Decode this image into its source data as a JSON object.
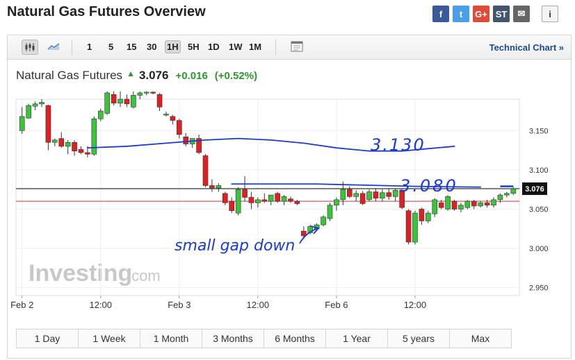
{
  "page": {
    "title": "Natural Gas Futures Overview"
  },
  "share": [
    {
      "name": "facebook",
      "glyph": "f",
      "color": "#3b5998"
    },
    {
      "name": "twitter",
      "glyph": "t",
      "color": "#4aa0e8"
    },
    {
      "name": "google-plus",
      "glyph": "G+",
      "color": "#dd4b39"
    },
    {
      "name": "stocktwits",
      "glyph": "ST",
      "color": "#40576e"
    },
    {
      "name": "email",
      "glyph": "✉",
      "color": "#666666"
    }
  ],
  "toolbar": {
    "timeframes": [
      "1",
      "5",
      "15",
      "30",
      "1H",
      "5H",
      "1D",
      "1W",
      "1M"
    ],
    "active_timeframe": "1H",
    "technical_chart": "Technical Chart »"
  },
  "quote": {
    "name": "Natural Gas Futures",
    "last": "3.076",
    "change": "+0.016",
    "change_pct": "(+0.52%)",
    "up_color": "#2a9a2a"
  },
  "watermark": {
    "brand": "Investing",
    "suffix": ".com"
  },
  "ranges": [
    "1 Day",
    "1 Week",
    "1 Month",
    "3 Months",
    "6 Months",
    "1 Year",
    "5 years",
    "Max"
  ],
  "chart_data": {
    "type": "candlestick",
    "title": "",
    "ylim": [
      2.94,
      3.19
    ],
    "y_ticks": [
      "3.150",
      "3.100",
      "3.050",
      "3.000",
      "2.950"
    ],
    "x_ticks": [
      "Feb 2",
      "12:00",
      "Feb 3",
      "12:00",
      "Feb 6",
      "12:00"
    ],
    "last_price_label": "3.076",
    "reference_lines": [
      {
        "name": "last price",
        "value": 3.076,
        "color": "#000000"
      },
      {
        "name": "previous close",
        "value": 3.06,
        "color": "#d03030"
      }
    ],
    "candle_colors": {
      "up": "#3bc43b",
      "down": "#e02020"
    },
    "candles": [
      {
        "o": 3.15,
        "h": 3.18,
        "l": 3.146,
        "c": 3.168
      },
      {
        "o": 3.166,
        "h": 3.184,
        "l": 3.165,
        "c": 3.182
      },
      {
        "o": 3.181,
        "h": 3.187,
        "l": 3.176,
        "c": 3.184
      },
      {
        "o": 3.184,
        "h": 3.19,
        "l": 3.18,
        "c": 3.186
      },
      {
        "o": 3.182,
        "h": 3.183,
        "l": 3.125,
        "c": 3.135
      },
      {
        "o": 3.135,
        "h": 3.14,
        "l": 3.13,
        "c": 3.138
      },
      {
        "o": 3.14,
        "h": 3.148,
        "l": 3.128,
        "c": 3.13
      },
      {
        "o": 3.13,
        "h": 3.138,
        "l": 3.12,
        "c": 3.135
      },
      {
        "o": 3.135,
        "h": 3.138,
        "l": 3.118,
        "c": 3.124
      },
      {
        "o": 3.126,
        "h": 3.13,
        "l": 3.12,
        "c": 3.122
      },
      {
        "o": 3.122,
        "h": 3.13,
        "l": 3.116,
        "c": 3.12
      },
      {
        "o": 3.12,
        "h": 3.168,
        "l": 3.118,
        "c": 3.165
      },
      {
        "o": 3.165,
        "h": 3.178,
        "l": 3.162,
        "c": 3.175
      },
      {
        "o": 3.172,
        "h": 3.2,
        "l": 3.17,
        "c": 3.198
      },
      {
        "o": 3.196,
        "h": 3.2,
        "l": 3.182,
        "c": 3.185
      },
      {
        "o": 3.185,
        "h": 3.2,
        "l": 3.18,
        "c": 3.19
      },
      {
        "o": 3.19,
        "h": 3.196,
        "l": 3.18,
        "c": 3.184
      },
      {
        "o": 3.18,
        "h": 3.2,
        "l": 3.178,
        "c": 3.195
      },
      {
        "o": 3.195,
        "h": 3.2,
        "l": 3.19,
        "c": 3.198
      },
      {
        "o": 3.198,
        "h": 3.2,
        "l": 3.195,
        "c": 3.199
      },
      {
        "o": 3.199,
        "h": 3.2,
        "l": 3.196,
        "c": 3.198
      },
      {
        "o": 3.196,
        "h": 3.198,
        "l": 3.175,
        "c": 3.18
      },
      {
        "o": 3.17,
        "h": 3.174,
        "l": 3.168,
        "c": 3.171
      },
      {
        "o": 3.168,
        "h": 3.17,
        "l": 3.158,
        "c": 3.163
      },
      {
        "o": 3.163,
        "h": 3.165,
        "l": 3.14,
        "c": 3.145
      },
      {
        "o": 3.142,
        "h": 3.147,
        "l": 3.13,
        "c": 3.133
      },
      {
        "o": 3.133,
        "h": 3.14,
        "l": 3.128,
        "c": 3.14
      },
      {
        "o": 3.14,
        "h": 3.145,
        "l": 3.12,
        "c": 3.122
      },
      {
        "o": 3.118,
        "h": 3.12,
        "l": 3.078,
        "c": 3.08
      },
      {
        "o": 3.08,
        "h": 3.088,
        "l": 3.072,
        "c": 3.077
      },
      {
        "o": 3.077,
        "h": 3.083,
        "l": 3.072,
        "c": 3.08
      },
      {
        "o": 3.07,
        "h": 3.072,
        "l": 3.055,
        "c": 3.058
      },
      {
        "o": 3.06,
        "h": 3.065,
        "l": 3.045,
        "c": 3.048
      },
      {
        "o": 3.045,
        "h": 3.078,
        "l": 3.042,
        "c": 3.075
      },
      {
        "o": 3.075,
        "h": 3.092,
        "l": 3.06,
        "c": 3.065
      },
      {
        "o": 3.065,
        "h": 3.072,
        "l": 3.05,
        "c": 3.058
      },
      {
        "o": 3.058,
        "h": 3.065,
        "l": 3.052,
        "c": 3.062
      },
      {
        "o": 3.062,
        "h": 3.07,
        "l": 3.058,
        "c": 3.06
      },
      {
        "o": 3.06,
        "h": 3.068,
        "l": 3.055,
        "c": 3.068
      },
      {
        "o": 3.07,
        "h": 3.072,
        "l": 3.058,
        "c": 3.06
      },
      {
        "o": 3.06,
        "h": 3.068,
        "l": 3.055,
        "c": 3.066
      },
      {
        "o": 3.063,
        "h": 3.066,
        "l": 3.058,
        "c": 3.06
      },
      {
        "o": 3.06,
        "h": 3.062,
        "l": 3.055,
        "c": 3.057
      },
      {
        "o": 3.022,
        "h": 3.028,
        "l": 3.012,
        "c": 3.016
      },
      {
        "o": 3.02,
        "h": 3.03,
        "l": 3.018,
        "c": 3.028
      },
      {
        "o": 3.025,
        "h": 3.032,
        "l": 3.022,
        "c": 3.03
      },
      {
        "o": 3.03,
        "h": 3.042,
        "l": 3.028,
        "c": 3.04
      },
      {
        "o": 3.038,
        "h": 3.058,
        "l": 3.035,
        "c": 3.055
      },
      {
        "o": 3.055,
        "h": 3.065,
        "l": 3.048,
        "c": 3.062
      },
      {
        "o": 3.062,
        "h": 3.085,
        "l": 3.055,
        "c": 3.075
      },
      {
        "o": 3.075,
        "h": 3.079,
        "l": 3.064,
        "c": 3.066
      },
      {
        "o": 3.066,
        "h": 3.074,
        "l": 3.06,
        "c": 3.07
      },
      {
        "o": 3.07,
        "h": 3.073,
        "l": 3.055,
        "c": 3.057
      },
      {
        "o": 3.062,
        "h": 3.075,
        "l": 3.06,
        "c": 3.072
      },
      {
        "o": 3.072,
        "h": 3.076,
        "l": 3.06,
        "c": 3.064
      },
      {
        "o": 3.064,
        "h": 3.075,
        "l": 3.06,
        "c": 3.071
      },
      {
        "o": 3.071,
        "h": 3.076,
        "l": 3.062,
        "c": 3.066
      },
      {
        "o": 3.066,
        "h": 3.076,
        "l": 3.06,
        "c": 3.074
      },
      {
        "o": 3.074,
        "h": 3.076,
        "l": 3.05,
        "c": 3.052
      },
      {
        "o": 3.048,
        "h": 3.05,
        "l": 3.005,
        "c": 3.008
      },
      {
        "o": 3.008,
        "h": 3.048,
        "l": 3.005,
        "c": 3.045
      },
      {
        "o": 3.05,
        "h": 3.052,
        "l": 3.03,
        "c": 3.035
      },
      {
        "o": 3.035,
        "h": 3.048,
        "l": 3.032,
        "c": 3.045
      },
      {
        "o": 3.044,
        "h": 3.064,
        "l": 3.04,
        "c": 3.062
      },
      {
        "o": 3.058,
        "h": 3.062,
        "l": 3.05,
        "c": 3.052
      },
      {
        "o": 3.05,
        "h": 3.068,
        "l": 3.048,
        "c": 3.066
      },
      {
        "o": 3.06,
        "h": 3.062,
        "l": 3.048,
        "c": 3.05
      },
      {
        "o": 3.05,
        "h": 3.058,
        "l": 3.046,
        "c": 3.055
      },
      {
        "o": 3.052,
        "h": 3.062,
        "l": 3.05,
        "c": 3.06
      },
      {
        "o": 3.06,
        "h": 3.062,
        "l": 3.05,
        "c": 3.054
      },
      {
        "o": 3.054,
        "h": 3.06,
        "l": 3.052,
        "c": 3.058
      },
      {
        "o": 3.058,
        "h": 3.062,
        "l": 3.052,
        "c": 3.055
      },
      {
        "o": 3.055,
        "h": 3.065,
        "l": 3.052,
        "c": 3.062
      },
      {
        "o": 3.062,
        "h": 3.07,
        "l": 3.058,
        "c": 3.068
      },
      {
        "o": 3.068,
        "h": 3.072,
        "l": 3.065,
        "c": 3.07
      },
      {
        "o": 3.07,
        "h": 3.078,
        "l": 3.068,
        "c": 3.076
      }
    ],
    "annotations": {
      "level_upper": "3.130",
      "level_lower": "3.080",
      "gap_note": "small gap down",
      "color": "#1a3ad6",
      "upper_curve_prices": [
        3.128,
        3.13,
        3.134,
        3.138,
        3.14,
        3.138,
        3.134,
        3.128,
        3.124,
        3.124,
        3.127,
        3.13
      ],
      "lower_line_prices": [
        3.082,
        3.082,
        3.079,
        3.078
      ]
    }
  }
}
